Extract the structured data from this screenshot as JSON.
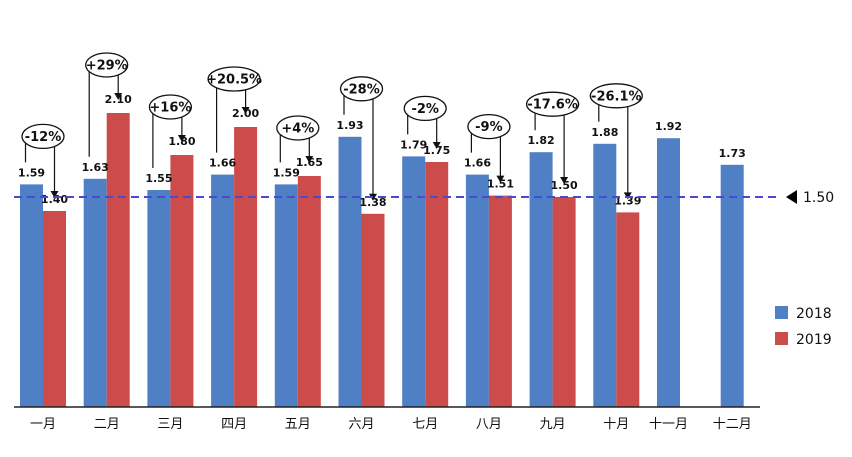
{
  "chart_data": {
    "type": "bar",
    "categories": [
      "一月",
      "二月",
      "三月",
      "四月",
      "五月",
      "六月",
      "七月",
      "八月",
      "九月",
      "十月",
      "十一月",
      "十二月"
    ],
    "series": [
      {
        "name": "2018",
        "color": "#4F7FC4",
        "values": [
          1.59,
          1.63,
          1.55,
          1.66,
          1.59,
          1.93,
          1.79,
          1.66,
          1.82,
          1.88,
          1.92,
          1.73
        ]
      },
      {
        "name": "2019",
        "color": "#CC4B4B",
        "values": [
          1.4,
          2.1,
          1.8,
          2.0,
          1.65,
          1.38,
          1.75,
          1.51,
          1.5,
          1.39,
          null,
          null
        ]
      }
    ],
    "data_labels": {
      "2018": [
        "1.59",
        "1.63",
        "1.55",
        "1.66",
        "1.59",
        "1.93",
        "1.79",
        "1.66",
        "1.82",
        "1.88",
        "1.92",
        "1.73"
      ],
      "2019": [
        "1.40",
        "2.10",
        "1.80",
        "2.00",
        "1.65",
        "1.38",
        "1.75",
        "1.51",
        "1.50",
        "1.39",
        "",
        ""
      ]
    },
    "changes": [
      "-12%",
      "+29%",
      "+16%",
      "+20.5%",
      "+4%",
      "-28%",
      "-2%",
      "-9%",
      "-17.6%",
      "-26.1%",
      "",
      ""
    ],
    "reference_line": {
      "value": 1.5,
      "label": "1.50",
      "color": "#4A4AD0"
    },
    "legend": {
      "position": "bottom-right",
      "entries": [
        "2018",
        "2019"
      ]
    },
    "ylim": [
      0,
      2.3
    ],
    "grid": false,
    "title": "",
    "xlabel": "",
    "ylabel": ""
  }
}
